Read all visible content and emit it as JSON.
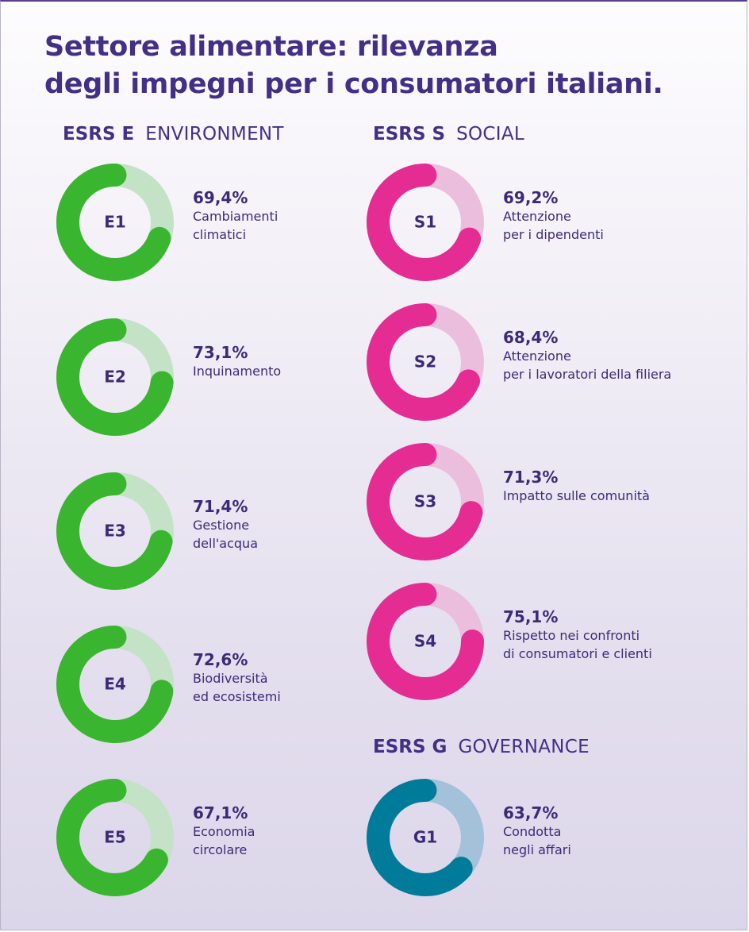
{
  "title_lines": [
    "Settore alimentare: rilevanza",
    "degli impegni per i consumatori italiani."
  ],
  "sections": {
    "environment": {
      "code": "ESRS E",
      "name": "ENVIRONMENT"
    },
    "social": {
      "code": "ESRS S",
      "name": "SOCIAL"
    },
    "governance": {
      "code": "ESRS G",
      "name": "GOVERNANCE"
    }
  },
  "colors": {
    "environment": {
      "main": "#3ab52f",
      "track": "#c4e2c6"
    },
    "social": {
      "main": "#e42c93",
      "track": "#ecbedd"
    },
    "governance": {
      "main": "#007b99",
      "track": "#a3c1d8"
    }
  },
  "chart_data": {
    "type": "donut",
    "unit": "%",
    "items": [
      {
        "code": "E1",
        "group": "environment",
        "value": 69.4,
        "value_label": "69,4%",
        "label_lines": [
          "Cambiamenti",
          "climatici"
        ]
      },
      {
        "code": "E2",
        "group": "environment",
        "value": 73.1,
        "value_label": "73,1%",
        "label_lines": [
          "Inquinamento"
        ]
      },
      {
        "code": "E3",
        "group": "environment",
        "value": 71.4,
        "value_label": "71,4%",
        "label_lines": [
          "Gestione",
          "dell'acqua"
        ]
      },
      {
        "code": "E4",
        "group": "environment",
        "value": 72.6,
        "value_label": "72,6%",
        "label_lines": [
          "Biodiversità",
          "ed ecosistemi"
        ]
      },
      {
        "code": "E5",
        "group": "environment",
        "value": 67.1,
        "value_label": "67,1%",
        "label_lines": [
          "Economia",
          "circolare"
        ]
      },
      {
        "code": "S1",
        "group": "social",
        "value": 69.2,
        "value_label": "69,2%",
        "label_lines": [
          "Attenzione",
          "per i dipendenti"
        ]
      },
      {
        "code": "S2",
        "group": "social",
        "value": 68.4,
        "value_label": "68,4%",
        "label_lines": [
          "Attenzione",
          "per i lavoratori della filiera"
        ]
      },
      {
        "code": "S3",
        "group": "social",
        "value": 71.3,
        "value_label": "71,3%",
        "label_lines": [
          "Impatto sulle comunità"
        ]
      },
      {
        "code": "S4",
        "group": "social",
        "value": 75.1,
        "value_label": "75,1%",
        "label_lines": [
          "Rispetto nei confronti",
          "di consumatori e clienti"
        ]
      },
      {
        "code": "G1",
        "group": "governance",
        "value": 63.7,
        "value_label": "63,7%",
        "label_lines": [
          "Condotta",
          "negli affari"
        ]
      }
    ]
  }
}
